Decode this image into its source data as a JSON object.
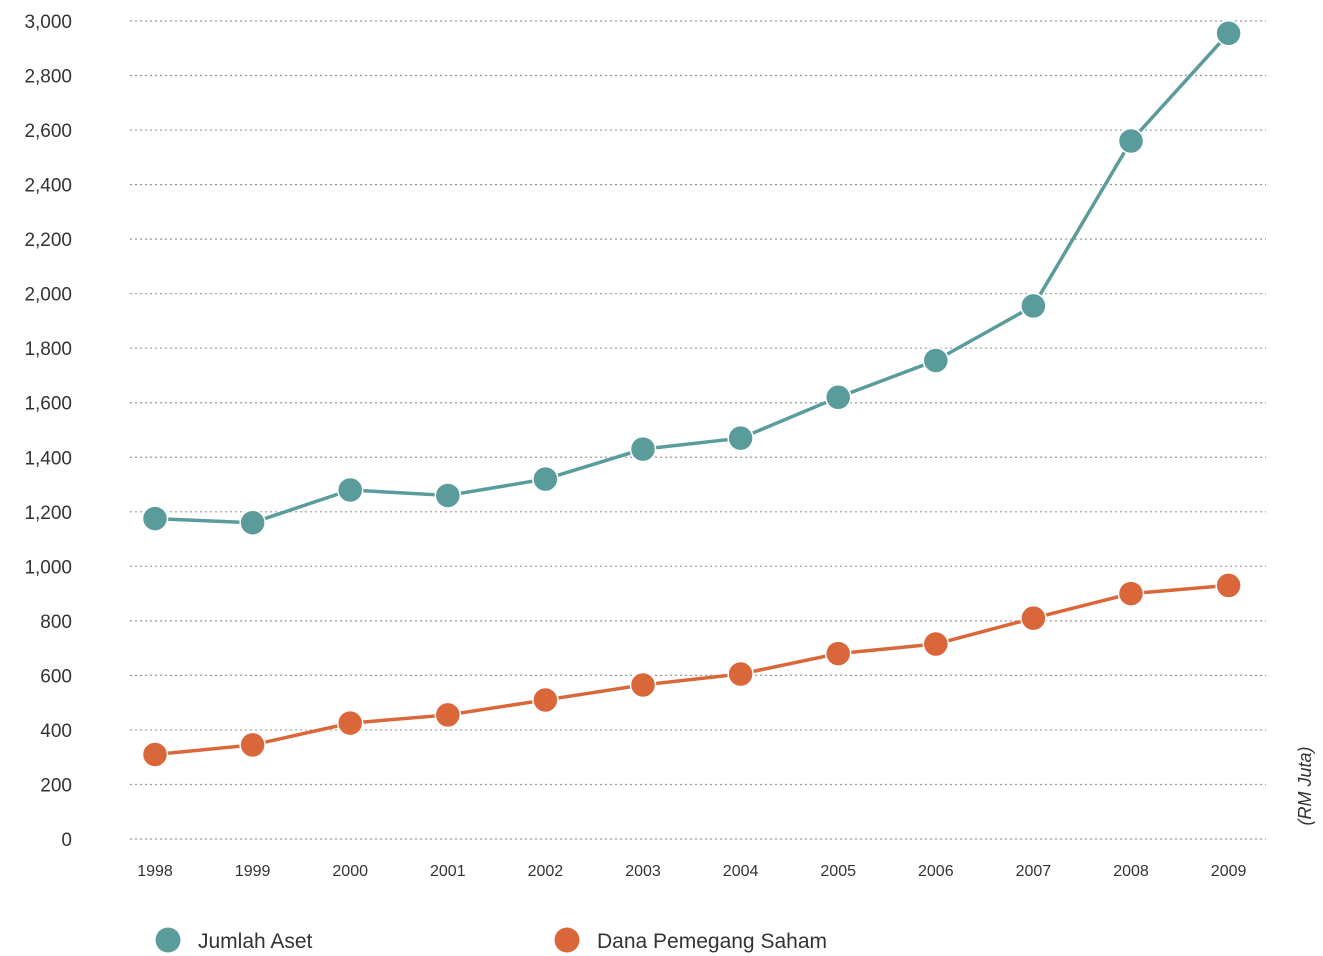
{
  "chart_data": {
    "type": "line",
    "categories": [
      "1998",
      "1999",
      "2000",
      "2001",
      "2002",
      "2003",
      "2004",
      "2005",
      "2006",
      "2007",
      "2008",
      "2009"
    ],
    "series": [
      {
        "name": "Jumlah Aset",
        "color": "#5a9c9b",
        "values": [
          1175,
          1160,
          1280,
          1260,
          1320,
          1430,
          1470,
          1620,
          1755,
          1955,
          2560,
          2955
        ]
      },
      {
        "name": "Dana Pemegang Saham",
        "color": "#d9673a",
        "values": [
          310,
          345,
          425,
          455,
          510,
          565,
          605,
          680,
          715,
          810,
          900,
          930
        ]
      }
    ],
    "yticks": [
      "0",
      "200",
      "400",
      "600",
      "800",
      "1,000",
      "1,200",
      "1,400",
      "1,600",
      "1,800",
      "2,000",
      "2,200",
      "2,400",
      "2,600",
      "2,800",
      "3,000"
    ],
    "ylim": [
      0,
      3000
    ],
    "unit_label": "(RM Juta)",
    "grid": true,
    "legend_position": "bottom"
  }
}
